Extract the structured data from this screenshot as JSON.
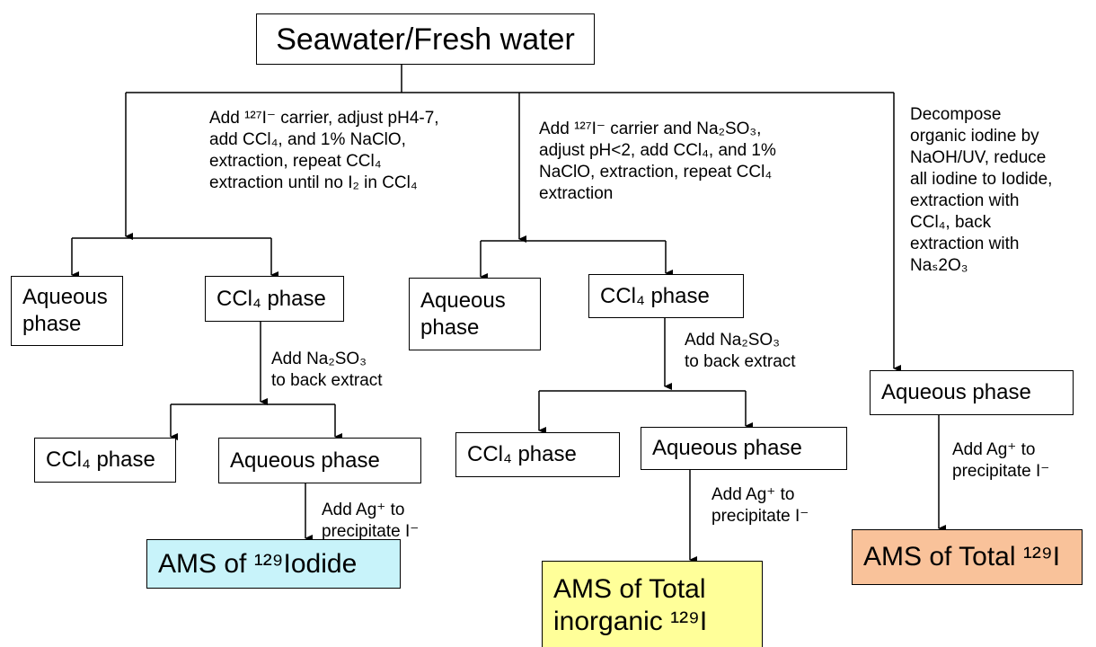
{
  "boxes": [
    {
      "lines": [
        "Seawater/Fresh water"
      ]
    },
    {
      "lines": [
        "Aqueous",
        "phase"
      ]
    },
    {
      "lines": [
        "CCl₄ phase"
      ]
    },
    {
      "lines": [
        "Aqueous",
        "phase"
      ]
    },
    {
      "lines": [
        "CCl₄ phase"
      ]
    },
    {
      "lines": [
        "Aqueous phase"
      ]
    },
    {
      "lines": [
        "CCl₄ phase"
      ]
    },
    {
      "lines": [
        "Aqueous phase"
      ]
    },
    {
      "lines": [
        "CCl₄ phase"
      ]
    },
    {
      "lines": [
        "Aqueous phase"
      ]
    },
    {
      "lines": [
        "AMS of ¹²⁹Iodide"
      ]
    },
    {
      "lines": [
        "AMS of Total",
        "inorganic ¹²⁹I"
      ]
    },
    {
      "lines": [
        "AMS of Total ¹²⁹I"
      ]
    }
  ],
  "notes": [
    {
      "lines": [
        "Add ¹²⁷I⁻ carrier, adjust pH4-7,",
        "add CCl₄, and 1% NaClO,",
        "extraction, repeat CCl₄",
        "extraction until no I₂ in CCl₄"
      ]
    },
    {
      "lines": [
        "Add ¹²⁷I⁻ carrier and Na₂SO₃,",
        "adjust pH<2, add CCl₄, and 1%",
        "NaClO, extraction, repeat CCl₄",
        "extraction"
      ]
    },
    {
      "lines": [
        "Decompose",
        "organic iodine by",
        "NaOH/UV, reduce",
        "all iodine to Iodide,",
        "extraction with",
        "CCl₄, back",
        "extraction with",
        "Naₛ2O₃"
      ]
    },
    {
      "lines": [
        "Add Na₂SO₃",
        "to back extract"
      ]
    },
    {
      "lines": [
        "Add Na₂SO₃",
        "to back extract"
      ]
    },
    {
      "lines": [
        "Add Ag⁺ to",
        "precipitate I⁻"
      ]
    },
    {
      "lines": [
        "Add Ag⁺ to",
        "precipitate I⁻"
      ]
    },
    {
      "lines": [
        "Add Ag⁺ to",
        "precipitate I⁻"
      ]
    }
  ]
}
